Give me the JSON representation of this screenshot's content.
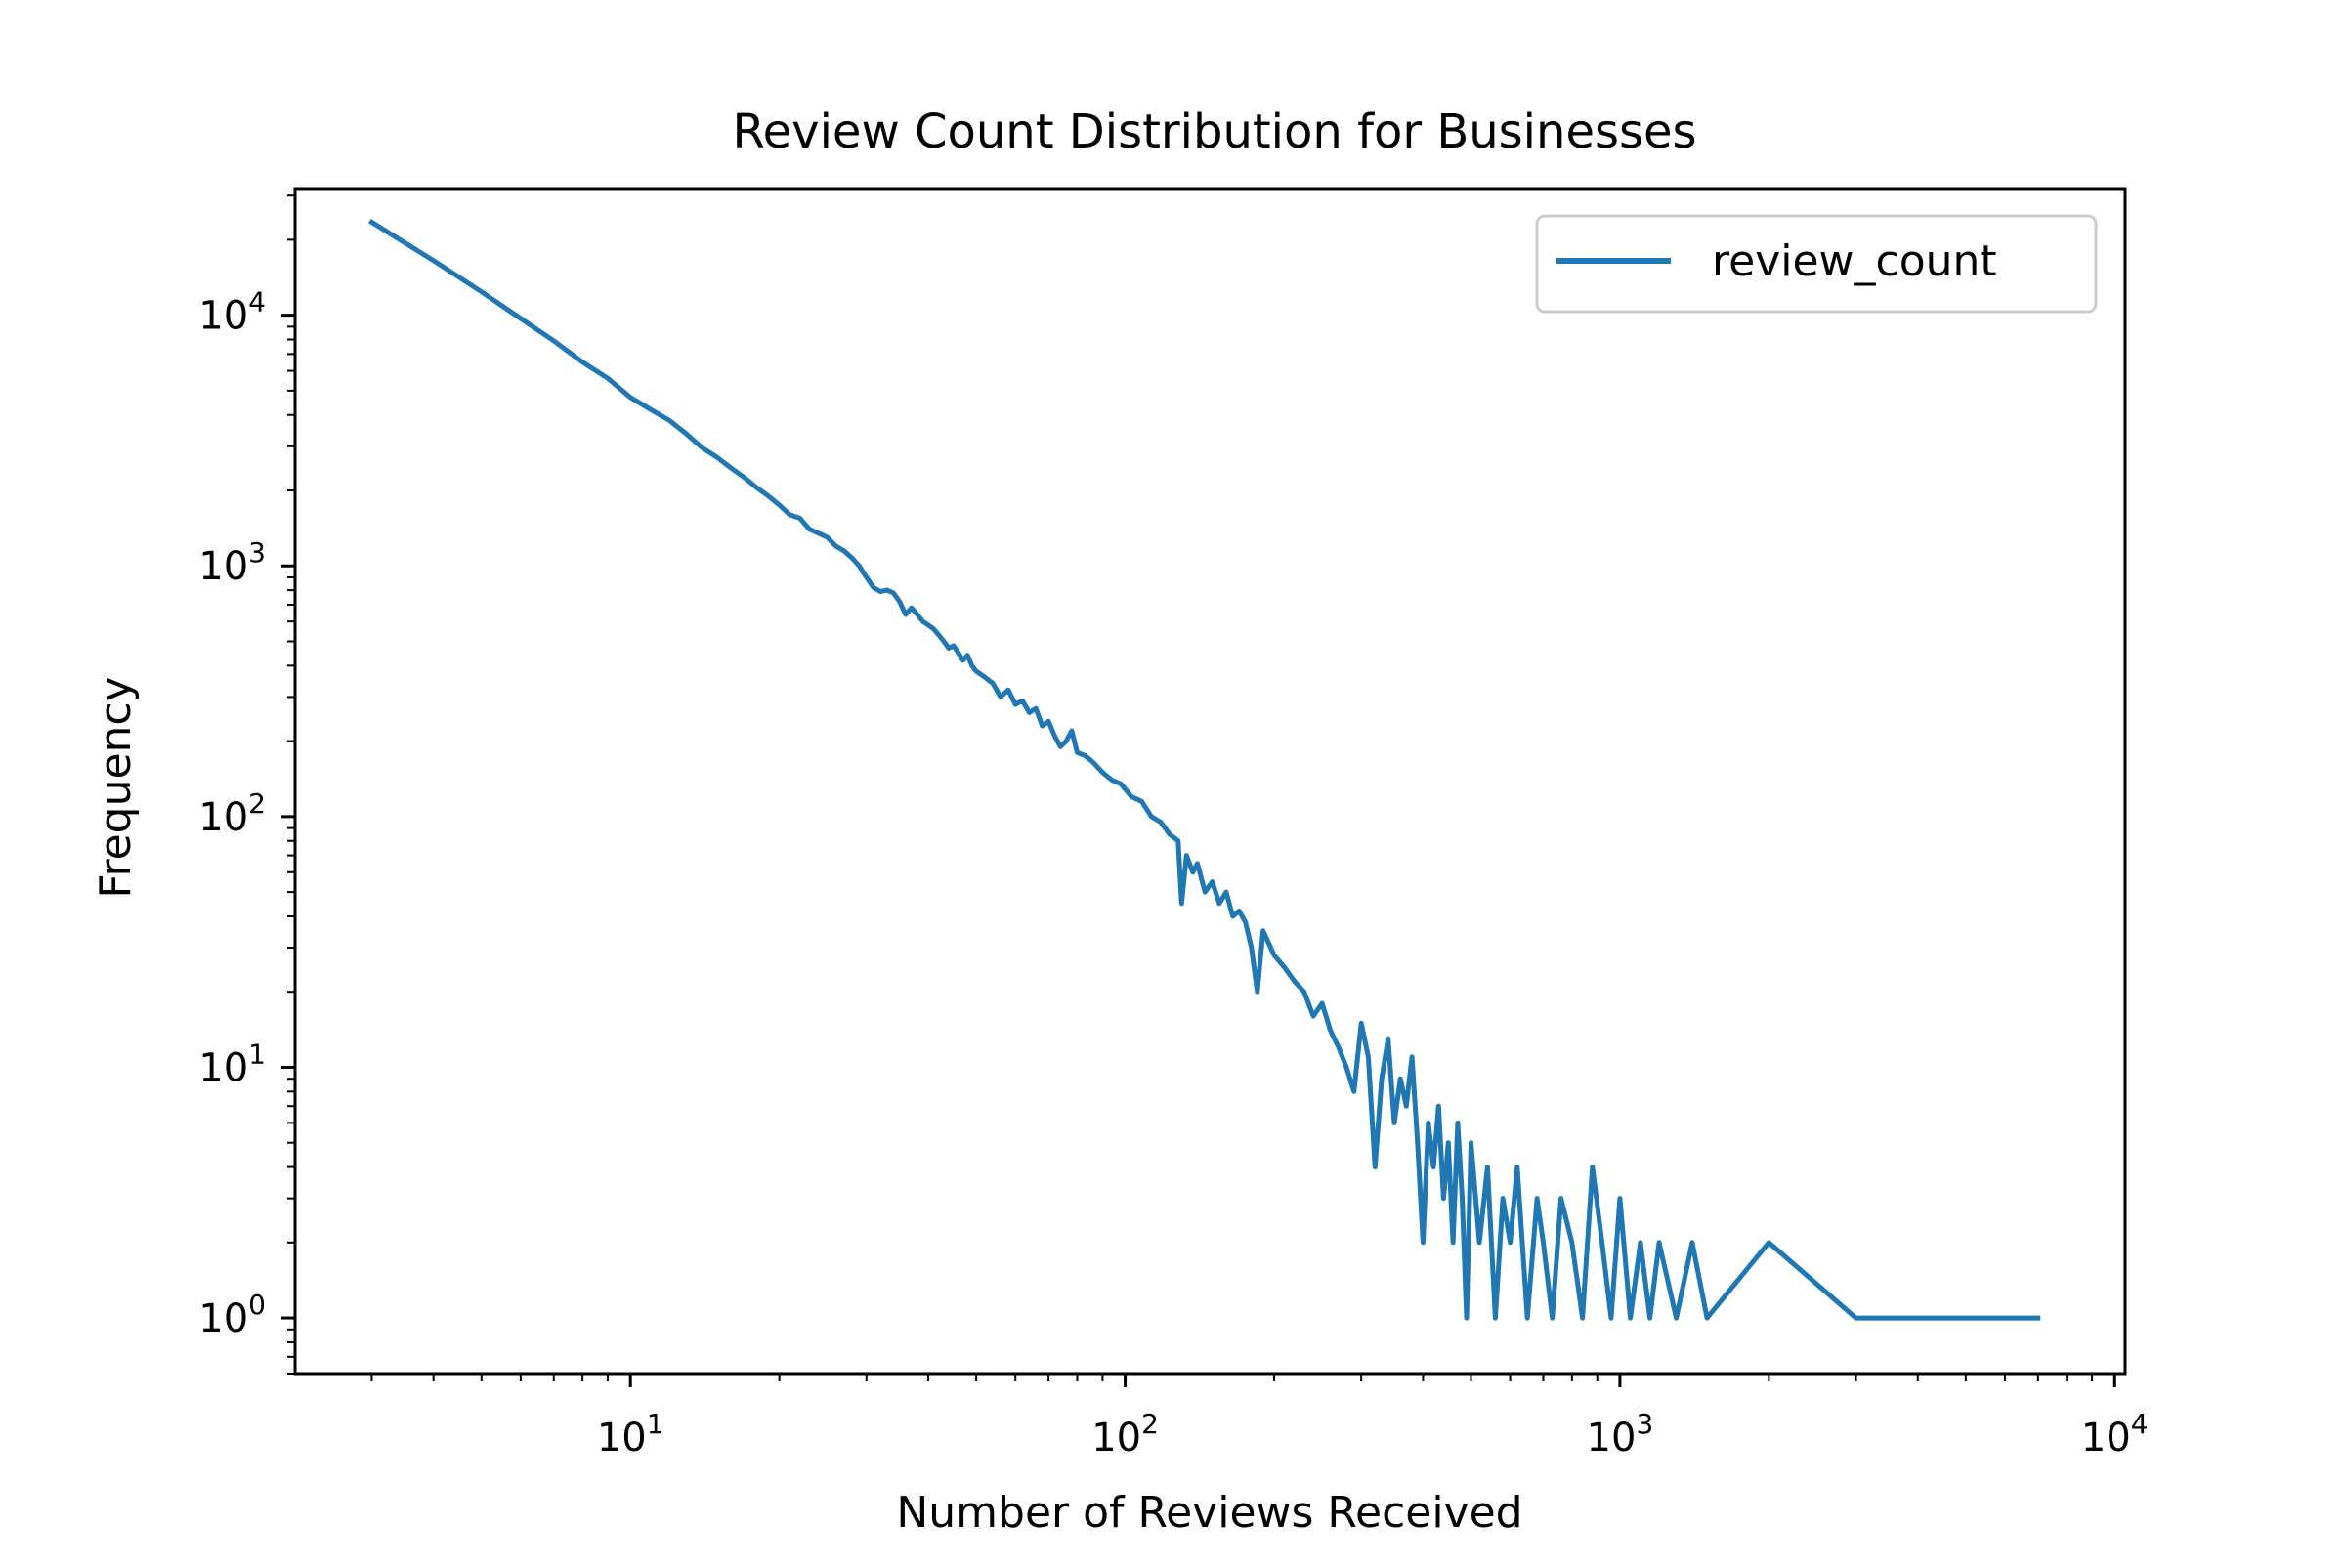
{
  "chart_data": {
    "type": "line",
    "title": "Review Count Distribution for Businesses",
    "xlabel": "Number of Reviews Received",
    "ylabel": "Frequency",
    "xscale": "log",
    "yscale": "log",
    "xlim": [
      2.1,
      10500
    ],
    "ylim": [
      0.6,
      32000
    ],
    "grid": false,
    "legend_position": "top-right",
    "line_color": "#1f77b4",
    "x_ticks": [
      {
        "base": "10",
        "exp": "1",
        "value": 10
      },
      {
        "base": "10",
        "exp": "2",
        "value": 100
      },
      {
        "base": "10",
        "exp": "3",
        "value": 1000
      },
      {
        "base": "10",
        "exp": "4",
        "value": 10000
      }
    ],
    "y_ticks": [
      {
        "base": "10",
        "exp": "0",
        "value": 1
      },
      {
        "base": "10",
        "exp": "1",
        "value": 10
      },
      {
        "base": "10",
        "exp": "2",
        "value": 100
      },
      {
        "base": "10",
        "exp": "3",
        "value": 1000
      },
      {
        "base": "10",
        "exp": "4",
        "value": 10000
      }
    ],
    "series": [
      {
        "name": "review_count",
        "points": [
          [
            3,
            23500
          ],
          [
            4,
            16500
          ],
          [
            5,
            12400
          ],
          [
            6,
            9700
          ],
          [
            7,
            7900
          ],
          [
            8,
            6500
          ],
          [
            9,
            5600
          ],
          [
            10,
            4700
          ],
          [
            11,
            4200
          ],
          [
            12,
            3800
          ],
          [
            13,
            3350
          ],
          [
            14,
            2950
          ],
          [
            15,
            2700
          ],
          [
            16,
            2450
          ],
          [
            17,
            2250
          ],
          [
            18,
            2050
          ],
          [
            19,
            1900
          ],
          [
            20,
            1750
          ],
          [
            21,
            1600
          ],
          [
            22,
            1550
          ],
          [
            23,
            1400
          ],
          [
            24,
            1350
          ],
          [
            25,
            1300
          ],
          [
            26,
            1200
          ],
          [
            27,
            1150
          ],
          [
            28,
            1080
          ],
          [
            29,
            1000
          ],
          [
            30,
            900
          ],
          [
            31,
            820
          ],
          [
            32,
            790
          ],
          [
            33,
            800
          ],
          [
            34,
            780
          ],
          [
            35,
            720
          ],
          [
            36,
            640
          ],
          [
            37,
            680
          ],
          [
            38,
            640
          ],
          [
            39,
            600
          ],
          [
            40,
            580
          ],
          [
            41,
            560
          ],
          [
            42,
            530
          ],
          [
            43,
            500
          ],
          [
            44,
            470
          ],
          [
            45,
            480
          ],
          [
            46,
            450
          ],
          [
            47,
            420
          ],
          [
            48,
            440
          ],
          [
            49,
            400
          ],
          [
            50,
            380
          ],
          [
            52,
            360
          ],
          [
            54,
            340
          ],
          [
            56,
            300
          ],
          [
            58,
            320
          ],
          [
            60,
            280
          ],
          [
            62,
            290
          ],
          [
            64,
            260
          ],
          [
            66,
            270
          ],
          [
            68,
            230
          ],
          [
            70,
            240
          ],
          [
            72,
            210
          ],
          [
            74,
            190
          ],
          [
            76,
            200
          ],
          [
            78,
            220
          ],
          [
            80,
            180
          ],
          [
            83,
            175
          ],
          [
            86,
            165
          ],
          [
            90,
            150
          ],
          [
            94,
            140
          ],
          [
            98,
            135
          ],
          [
            103,
            120
          ],
          [
            108,
            115
          ],
          [
            113,
            100
          ],
          [
            118,
            95
          ],
          [
            123,
            85
          ],
          [
            128,
            80
          ],
          [
            130,
            45
          ],
          [
            133,
            70
          ],
          [
            137,
            60
          ],
          [
            140,
            65
          ],
          [
            145,
            50
          ],
          [
            150,
            55
          ],
          [
            155,
            45
          ],
          [
            160,
            50
          ],
          [
            165,
            40
          ],
          [
            170,
            42
          ],
          [
            175,
            38
          ],
          [
            180,
            30
          ],
          [
            185,
            20
          ],
          [
            190,
            35
          ],
          [
            200,
            28
          ],
          [
            210,
            25
          ],
          [
            220,
            22
          ],
          [
            230,
            20
          ],
          [
            240,
            16
          ],
          [
            250,
            18
          ],
          [
            260,
            14
          ],
          [
            270,
            12
          ],
          [
            280,
            10
          ],
          [
            290,
            8
          ],
          [
            300,
            15
          ],
          [
            310,
            11
          ],
          [
            320,
            4
          ],
          [
            330,
            9
          ],
          [
            340,
            13
          ],
          [
            350,
            6
          ],
          [
            360,
            9
          ],
          [
            370,
            7
          ],
          [
            380,
            11
          ],
          [
            390,
            5
          ],
          [
            400,
            2
          ],
          [
            410,
            6
          ],
          [
            420,
            4
          ],
          [
            430,
            7
          ],
          [
            440,
            3
          ],
          [
            450,
            5
          ],
          [
            460,
            2
          ],
          [
            470,
            6
          ],
          [
            480,
            3
          ],
          [
            490,
            1
          ],
          [
            500,
            5
          ],
          [
            520,
            2
          ],
          [
            540,
            4
          ],
          [
            560,
            1
          ],
          [
            580,
            3
          ],
          [
            600,
            2
          ],
          [
            620,
            4
          ],
          [
            650,
            1
          ],
          [
            680,
            3
          ],
          [
            700,
            2
          ],
          [
            730,
            1
          ],
          [
            760,
            3
          ],
          [
            800,
            2
          ],
          [
            840,
            1
          ],
          [
            880,
            4
          ],
          [
            920,
            2
          ],
          [
            960,
            1
          ],
          [
            1000,
            3
          ],
          [
            1050,
            1
          ],
          [
            1100,
            2
          ],
          [
            1150,
            1
          ],
          [
            1200,
            2
          ],
          [
            1300,
            1
          ],
          [
            1400,
            2
          ],
          [
            1500,
            1
          ],
          [
            2000,
            2
          ],
          [
            3000,
            1
          ],
          [
            7000,
            1
          ]
        ]
      }
    ]
  }
}
